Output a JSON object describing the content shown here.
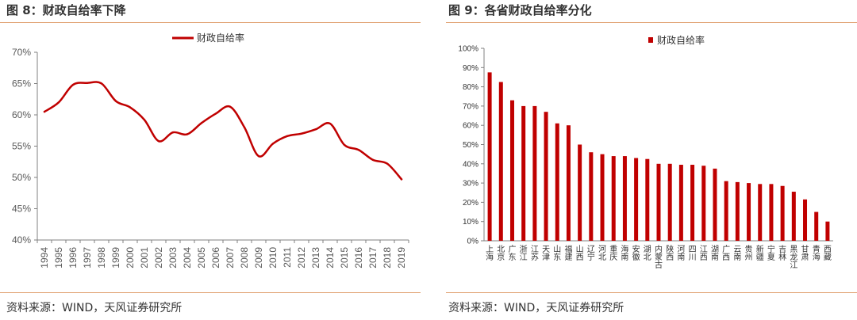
{
  "left_panel": {
    "title": "图 8：财政自给率下降",
    "source": "资料来源：WIND，天风证券研究所"
  },
  "right_panel": {
    "title": "图 9：各省财政自给率分化",
    "source": "资料来源：WIND，天风证券研究所"
  },
  "colors": {
    "series": "#c00000",
    "rule": "#e0a070",
    "axis": "#808080"
  },
  "chart_data": [
    {
      "type": "line",
      "title": "",
      "legend_position": "top",
      "series": [
        {
          "name": "财政自给率",
          "color": "#c00000"
        }
      ],
      "x": [
        "1994",
        "1995",
        "1996",
        "1997",
        "1998",
        "1999",
        "2000",
        "2001",
        "2002",
        "2003",
        "2004",
        "2005",
        "2006",
        "2007",
        "2008",
        "2009",
        "2010",
        "2011",
        "2012",
        "2013",
        "2014",
        "2015",
        "2016",
        "2017",
        "2018",
        "2019"
      ],
      "y": [
        60.5,
        62.0,
        64.8,
        65.1,
        65.0,
        62.2,
        61.2,
        59.2,
        55.8,
        57.2,
        56.9,
        58.7,
        60.2,
        61.3,
        58.0,
        53.4,
        55.4,
        56.6,
        57.0,
        57.7,
        58.6,
        55.2,
        54.4,
        52.8,
        52.2,
        49.7
      ],
      "ylim": [
        40,
        70
      ],
      "yticks": [
        "40%",
        "45%",
        "50%",
        "55%",
        "60%",
        "65%",
        "70%"
      ],
      "grid": false
    },
    {
      "type": "bar",
      "title": "",
      "legend_position": "top",
      "series": [
        {
          "name": "财政自给率",
          "color": "#c00000",
          "values": [
            87.5,
            82.5,
            73.0,
            70.0,
            70.0,
            67.0,
            61.0,
            60.0,
            50.0,
            46.0,
            45.0,
            44.0,
            44.0,
            43.0,
            42.5,
            40.0,
            40.0,
            39.5,
            39.5,
            39.0,
            37.5,
            31.0,
            30.5,
            30.0,
            29.5,
            29.5,
            28.5,
            25.5,
            21.5,
            15.0,
            10.0
          ]
        }
      ],
      "categories": [
        "上海",
        "北京",
        "广东",
        "浙江",
        "江苏",
        "天津",
        "山东",
        "福建",
        "山西",
        "辽宁",
        "河北",
        "重庆",
        "海南",
        "安徽",
        "湖北",
        "内蒙古",
        "陕西",
        "河南",
        "四川",
        "江西",
        "湖南",
        "广西",
        "云南",
        "贵州",
        "新疆",
        "宁夏",
        "吉林",
        "黑龙江",
        "甘肃",
        "青海",
        "西藏"
      ],
      "ylim": [
        0,
        100
      ],
      "yticks": [
        "0%",
        "10%",
        "20%",
        "30%",
        "40%",
        "50%",
        "60%",
        "70%",
        "80%",
        "90%",
        "100%"
      ],
      "grid": false
    }
  ]
}
